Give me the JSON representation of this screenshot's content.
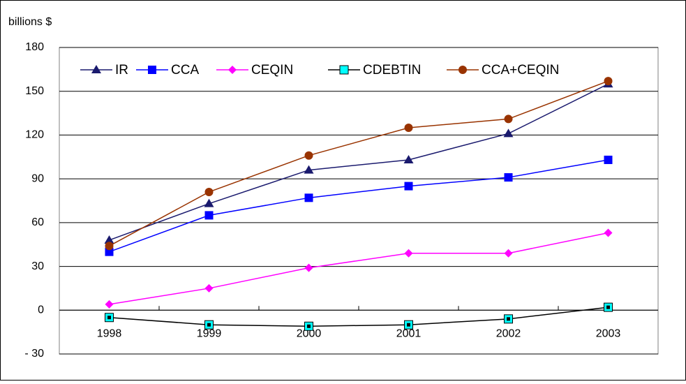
{
  "chart_data": {
    "type": "line",
    "y_label": "billions $",
    "categories": [
      "1998",
      "1999",
      "2000",
      "2001",
      "2002",
      "2003"
    ],
    "series": [
      {
        "name": "IR",
        "color": "#1a1a6e",
        "marker": "triangle",
        "values": [
          48,
          73,
          96,
          103,
          121,
          155
        ]
      },
      {
        "name": "CCA",
        "color": "#0000ff",
        "marker": "square",
        "values": [
          40,
          65,
          77,
          85,
          91,
          103
        ]
      },
      {
        "name": "CEQIN",
        "color": "#ff00ff",
        "marker": "diamond",
        "values": [
          4,
          15,
          29,
          39,
          39,
          53
        ]
      },
      {
        "name": "CDEBTIN",
        "color": "#000000",
        "marker": "square",
        "marker_color": "#00ffff",
        "values": [
          -5,
          -10,
          -11,
          -10,
          -6,
          2
        ]
      },
      {
        "name": "CCA+CEQIN",
        "color": "#993300",
        "marker": "circle",
        "values": [
          44,
          81,
          106,
          125,
          131,
          157
        ]
      }
    ],
    "ylim": [
      -30,
      180
    ],
    "yticks": [
      {
        "value": -30,
        "label": "- 30"
      },
      0,
      30,
      60,
      90,
      120,
      150,
      180
    ],
    "grid": true,
    "legend": "top"
  }
}
